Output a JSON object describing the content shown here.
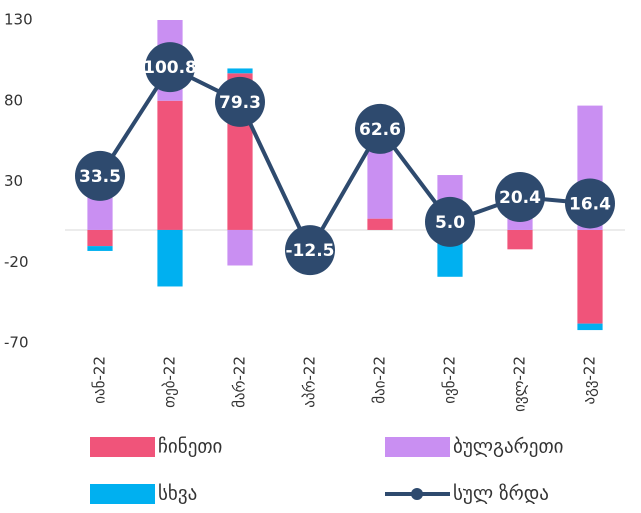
{
  "chart_data": {
    "type": "bar",
    "stacked": true,
    "categories": [
      "იან-22",
      "თებ-22",
      "მარ-22",
      "აპრ-22",
      "მაი-22",
      "ივნ-22",
      "ივლ-22",
      "აგვ-22"
    ],
    "series": [
      {
        "name": "ჩინეთი",
        "color": "#f0547a",
        "values": [
          -10,
          80,
          97,
          0,
          7,
          0,
          -12,
          -58
        ]
      },
      {
        "name": "ბულგარეთი",
        "color": "#c98ff2",
        "values": [
          25,
          50,
          -22,
          0,
          58,
          34,
          20,
          77
        ]
      },
      {
        "name": "სხვა",
        "color": "#00b0f0",
        "values": [
          -3,
          -35,
          3,
          1,
          0,
          -29,
          0,
          -4
        ]
      },
      {
        "name": "სულ ზრდა",
        "color": "#2e4a6e",
        "type": "line",
        "values": [
          33.5,
          100.8,
          79.3,
          -12.5,
          62.6,
          5.0,
          20.4,
          16.4
        ],
        "value_labels": [
          "33.5",
          "100.8",
          "79.3",
          "-12.5",
          "62.6",
          "5.0",
          "20.4",
          "16.4"
        ]
      }
    ],
    "ylim": [
      -70,
      130
    ],
    "yticks": [
      -70,
      -20,
      30,
      80,
      130
    ],
    "grid": false
  }
}
